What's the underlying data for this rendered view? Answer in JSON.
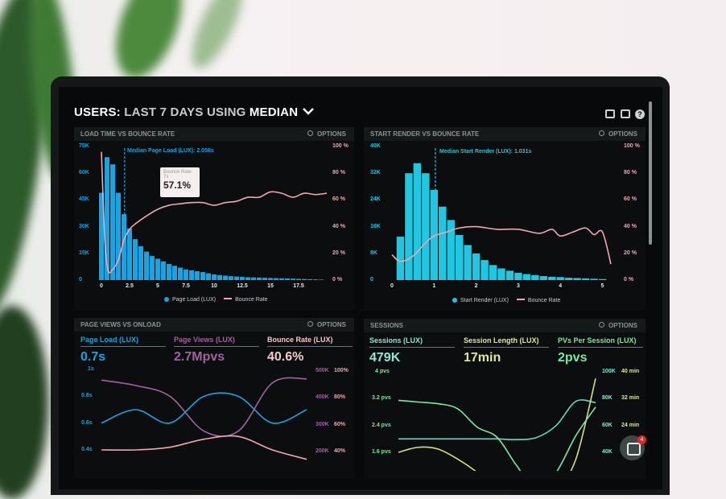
{
  "header": {
    "title_a": "USERS:",
    "title_b": "LAST 7 DAYS",
    "title_c": "USING",
    "title_d": "MEDIAN",
    "dropdown_icon": "chevron-down-icon",
    "icons": [
      "monitor-icon",
      "share-icon",
      "help-icon"
    ],
    "help_label": "?"
  },
  "colors": {
    "page_load": "#1aa3e0",
    "start_render": "#22c6e0",
    "bounce": "#f0a6b4",
    "page_views": "#a0639f",
    "sessions": "#66d9c4",
    "session_length": "#d8e07a",
    "pvs_per_session": "#7be8a8"
  },
  "options_label": "OPTIONS",
  "panels": {
    "load": {
      "title": "LOAD TIME VS BOUNCE RATE",
      "median": "Median Page Load (LUX): 2.056s",
      "tooltip": {
        "label": "Bounce Rate",
        "sub": "7s",
        "value": "57.1%"
      },
      "legend": [
        "Page Load (LUX)",
        "Bounce Rate"
      ]
    },
    "render": {
      "title": "START RENDER VS BOUNCE RATE",
      "median": "Median Start Render (LUX): 1.031s",
      "legend": [
        "Start Render (LUX)",
        "Bounce Rate"
      ]
    },
    "views": {
      "title": "PAGE VIEWS VS ONLOAD",
      "kpis": [
        {
          "label": "Page Load (LUX)",
          "value": "0.7s"
        },
        {
          "label": "Page Views (LUX)",
          "value": "2.7Mpvs"
        },
        {
          "label": "Bounce Rate (LUX)",
          "value": "40.6%"
        }
      ]
    },
    "sessions": {
      "title": "SESSIONS",
      "kpis": [
        {
          "label": "Sessions (LUX)",
          "value": "479K"
        },
        {
          "label": "Session Length (LUX)",
          "value": "17min"
        },
        {
          "label": "PVs Per Session (LUX)",
          "value": "2pvs"
        }
      ]
    }
  },
  "chat": {
    "icon": "chat-icon",
    "badge": "4"
  },
  "chart_data": [
    {
      "type": "bar",
      "title": "LOAD TIME VS BOUNCE RATE",
      "x_ticks": [
        "0",
        "2.5",
        "5",
        "7.5",
        "10",
        "12.5",
        "15",
        "17.5"
      ],
      "y_ticks": [
        "75K",
        "60K",
        "45K",
        "30K",
        "15K",
        "0"
      ],
      "y2_ticks": [
        "100 %",
        "80 %",
        "60 %",
        "40 %",
        "20 %",
        "0 %"
      ],
      "ylim": [
        0,
        75000
      ],
      "y2lim": [
        0,
        100
      ],
      "xlim": [
        0,
        20
      ],
      "series": [
        {
          "name": "Page Load (LUX)",
          "bin_width": 0.5,
          "x": [
            0,
            0.5,
            1,
            1.5,
            2,
            2.5,
            3,
            3.5,
            4,
            4.5,
            5,
            5.5,
            6,
            6.5,
            7,
            7.5,
            8,
            8.5,
            9,
            9.5,
            10,
            10.5,
            11,
            11.5,
            12,
            12.5,
            13,
            13.5,
            14,
            14.5,
            15,
            15.5,
            16,
            16.5,
            17,
            17.5,
            18,
            18.5,
            19,
            19.5
          ],
          "values": [
            49000,
            69000,
            65000,
            49000,
            37000,
            29000,
            23000,
            19000,
            16000,
            13500,
            12000,
            10500,
            9000,
            8000,
            7000,
            6000,
            5500,
            5000,
            4500,
            3800,
            3200,
            2800,
            2500,
            2200,
            2000,
            1800,
            1600,
            1500,
            1400,
            1300,
            1200,
            1100,
            1000,
            900,
            800,
            700,
            600,
            500,
            400,
            300
          ]
        },
        {
          "name": "Bounce Rate",
          "x": [
            0,
            0.3,
            0.6,
            1,
            1.5,
            2,
            2.5,
            3,
            4,
            5,
            6,
            7,
            8,
            9,
            10,
            11,
            12,
            13,
            14,
            15,
            16,
            17,
            18,
            19,
            20
          ],
          "values": [
            96,
            30,
            7,
            8,
            15,
            30,
            38,
            42,
            48,
            53,
            56,
            57.1,
            58,
            58,
            56,
            58,
            59,
            62,
            62,
            66,
            65,
            62,
            65,
            64,
            65
          ]
        }
      ],
      "median": 2.056
    },
    {
      "type": "bar",
      "title": "START RENDER VS BOUNCE RATE",
      "x_ticks": [
        "0",
        "1",
        "2",
        "3",
        "4",
        "5"
      ],
      "y_ticks": [
        "40K",
        "32K",
        "24K",
        "16K",
        "8K",
        "0"
      ],
      "y2_ticks": [
        "100 %",
        "80 %",
        "60 %",
        "40 %",
        "20 %",
        "0 %"
      ],
      "ylim": [
        0,
        40000
      ],
      "y2lim": [
        0,
        100
      ],
      "xlim": [
        0,
        5.2
      ],
      "series": [
        {
          "name": "Start Render (LUX)",
          "bin_width": 0.2,
          "x": [
            0.2,
            0.4,
            0.6,
            0.8,
            1,
            1.2,
            1.4,
            1.6,
            1.8,
            2,
            2.2,
            2.4,
            2.6,
            2.8,
            3,
            3.2,
            3.4,
            3.6,
            3.8,
            4,
            4.2,
            4.4,
            4.6,
            4.8,
            5
          ],
          "values": [
            13000,
            32000,
            35000,
            32000,
            27000,
            22000,
            18000,
            13500,
            10500,
            8000,
            6000,
            4500,
            3500,
            2800,
            2200,
            1800,
            1500,
            1200,
            1000,
            900,
            700,
            600,
            500,
            400,
            300
          ]
        },
        {
          "name": "Bounce Rate",
          "x": [
            0,
            0.2,
            0.5,
            0.8,
            1,
            1.3,
            1.6,
            2,
            2.5,
            3,
            3.5,
            3.8,
            4,
            4.3,
            4.6,
            4.8,
            5,
            5.2
          ],
          "values": [
            19,
            14,
            18,
            28,
            33,
            36,
            39,
            40,
            38,
            38,
            35,
            38,
            33,
            36,
            39,
            34,
            36,
            12
          ]
        }
      ],
      "median": 1.031
    },
    {
      "type": "line",
      "title": "PAGE VIEWS VS ONLOAD",
      "y_ticks": [
        "1s",
        "0.8s",
        "0.6s",
        "0.4s"
      ],
      "y2_ticks": [
        "500K",
        "400K",
        "300K",
        "200K"
      ],
      "y3_ticks": [
        "100%",
        "80%",
        "60%",
        "40%"
      ],
      "series": [
        {
          "name": "Page Load (LUX)",
          "values": [
            0.6,
            0.7,
            0.6,
            0.8,
            0.8,
            0.6,
            0.7
          ]
        },
        {
          "name": "Page Views (LUX)",
          "values": [
            460,
            440,
            400,
            270,
            270,
            450,
            465
          ]
        },
        {
          "name": "Bounce Rate (LUX)",
          "values": [
            40,
            40,
            42,
            48,
            50,
            40,
            33
          ]
        }
      ]
    },
    {
      "type": "line",
      "title": "SESSIONS",
      "y_ticks": [
        "4 pvs",
        "3.2 pvs",
        "2.4 pvs",
        "1.6 pvs"
      ],
      "y2_ticks": [
        "100K",
        "80K",
        "60K",
        "40K"
      ],
      "y3_ticks": [
        "40 min",
        "32 min",
        "24 min"
      ],
      "series": [
        {
          "name": "Sessions (LUX)",
          "values": [
            50,
            50,
            50,
            50,
            50,
            50,
            49.5,
            51,
            60,
            78,
            77
          ]
        },
        {
          "name": "Session Length (LUX)",
          "values": [
            16,
            17.5,
            17,
            14,
            10,
            5,
            5,
            5,
            5,
            14,
            38
          ]
        },
        {
          "name": "PVs Per Session (LUX)",
          "values": [
            3.15,
            3.1,
            3.05,
            2.9,
            2.35,
            2.05,
            1.2,
            0.5,
            1.0,
            2.1,
            2.95
          ]
        }
      ]
    }
  ]
}
